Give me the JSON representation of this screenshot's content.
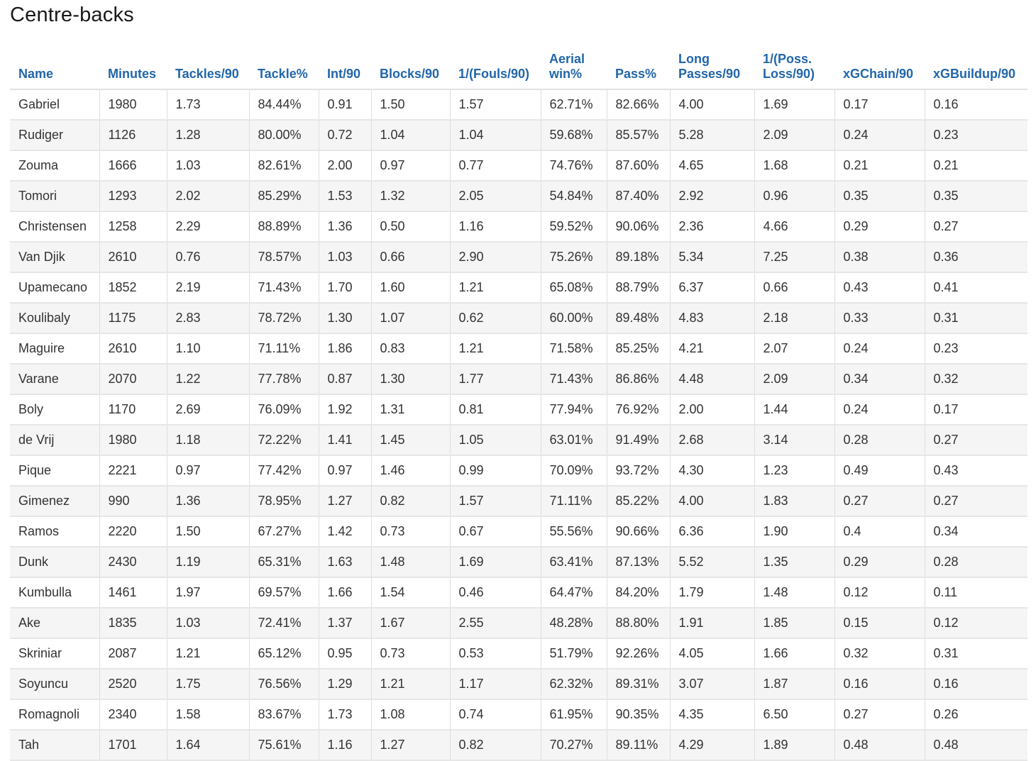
{
  "title": "Centre-backs",
  "columns": [
    {
      "line1": "Name",
      "line2": ""
    },
    {
      "line1": "Minutes",
      "line2": ""
    },
    {
      "line1": "Tackles/90",
      "line2": ""
    },
    {
      "line1": "Tackle%",
      "line2": ""
    },
    {
      "line1": "Int/90",
      "line2": ""
    },
    {
      "line1": "Blocks/90",
      "line2": ""
    },
    {
      "line1": "1/(Fouls/90)",
      "line2": ""
    },
    {
      "line1": "Aerial",
      "line2": "win%"
    },
    {
      "line1": "Pass%",
      "line2": ""
    },
    {
      "line1": "Long",
      "line2": "Passes/90"
    },
    {
      "line1": "1/(Poss.",
      "line2": "Loss/90)"
    },
    {
      "line1": "xGChain/90",
      "line2": ""
    },
    {
      "line1": "xGBuildup/90",
      "line2": ""
    }
  ],
  "rows": [
    [
      "Gabriel",
      "1980",
      "1.73",
      "84.44%",
      "0.91",
      "1.50",
      "1.57",
      "62.71%",
      "82.66%",
      "4.00",
      "1.69",
      "0.17",
      "0.16"
    ],
    [
      "Rudiger",
      "1126",
      "1.28",
      "80.00%",
      "0.72",
      "1.04",
      "1.04",
      "59.68%",
      "85.57%",
      "5.28",
      "2.09",
      "0.24",
      "0.23"
    ],
    [
      "Zouma",
      "1666",
      "1.03",
      "82.61%",
      "2.00",
      "0.97",
      "0.77",
      "74.76%",
      "87.60%",
      "4.65",
      "1.68",
      "0.21",
      "0.21"
    ],
    [
      "Tomori",
      "1293",
      "2.02",
      "85.29%",
      "1.53",
      "1.32",
      "2.05",
      "54.84%",
      "87.40%",
      "2.92",
      "0.96",
      "0.35",
      "0.35"
    ],
    [
      "Christensen",
      "1258",
      "2.29",
      "88.89%",
      "1.36",
      "0.50",
      "1.16",
      "59.52%",
      "90.06%",
      "2.36",
      "4.66",
      "0.29",
      "0.27"
    ],
    [
      "Van Djik",
      "2610",
      "0.76",
      "78.57%",
      "1.03",
      "0.66",
      "2.90",
      "75.26%",
      "89.18%",
      "5.34",
      "7.25",
      "0.38",
      "0.36"
    ],
    [
      "Upamecano",
      "1852",
      "2.19",
      "71.43%",
      "1.70",
      "1.60",
      "1.21",
      "65.08%",
      "88.79%",
      "6.37",
      "0.66",
      "0.43",
      "0.41"
    ],
    [
      "Koulibaly",
      "1175",
      "2.83",
      "78.72%",
      "1.30",
      "1.07",
      "0.62",
      "60.00%",
      "89.48%",
      "4.83",
      "2.18",
      "0.33",
      "0.31"
    ],
    [
      "Maguire",
      "2610",
      "1.10",
      "71.11%",
      "1.86",
      "0.83",
      "1.21",
      "71.58%",
      "85.25%",
      "4.21",
      "2.07",
      "0.24",
      "0.23"
    ],
    [
      "Varane",
      "2070",
      "1.22",
      "77.78%",
      "0.87",
      "1.30",
      "1.77",
      "71.43%",
      "86.86%",
      "4.48",
      "2.09",
      "0.34",
      "0.32"
    ],
    [
      "Boly",
      "1170",
      "2.69",
      "76.09%",
      "1.92",
      "1.31",
      "0.81",
      "77.94%",
      "76.92%",
      "2.00",
      "1.44",
      "0.24",
      "0.17"
    ],
    [
      "de Vrij",
      "1980",
      "1.18",
      "72.22%",
      "1.41",
      "1.45",
      "1.05",
      "63.01%",
      "91.49%",
      "2.68",
      "3.14",
      "0.28",
      "0.27"
    ],
    [
      "Pique",
      "2221",
      "0.97",
      "77.42%",
      "0.97",
      "1.46",
      "0.99",
      "70.09%",
      "93.72%",
      "4.30",
      "1.23",
      "0.49",
      "0.43"
    ],
    [
      "Gimenez",
      "990",
      "1.36",
      "78.95%",
      "1.27",
      "0.82",
      "1.57",
      "71.11%",
      "85.22%",
      "4.00",
      "1.83",
      "0.27",
      "0.27"
    ],
    [
      "Ramos",
      "2220",
      "1.50",
      "67.27%",
      "1.42",
      "0.73",
      "0.67",
      "55.56%",
      "90.66%",
      "6.36",
      "1.90",
      "0.4",
      "0.34"
    ],
    [
      "Dunk",
      "2430",
      "1.19",
      "65.31%",
      "1.63",
      "1.48",
      "1.69",
      "63.41%",
      "87.13%",
      "5.52",
      "1.35",
      "0.29",
      "0.28"
    ],
    [
      "Kumbulla",
      "1461",
      "1.97",
      "69.57%",
      "1.66",
      "1.54",
      "0.46",
      "64.47%",
      "84.20%",
      "1.79",
      "1.48",
      "0.12",
      "0.11"
    ],
    [
      "Ake",
      "1835",
      "1.03",
      "72.41%",
      "1.37",
      "1.67",
      "2.55",
      "48.28%",
      "88.80%",
      "1.91",
      "1.85",
      "0.15",
      "0.12"
    ],
    [
      "Skriniar",
      "2087",
      "1.21",
      "65.12%",
      "0.95",
      "0.73",
      "0.53",
      "51.79%",
      "92.26%",
      "4.05",
      "1.66",
      "0.32",
      "0.31"
    ],
    [
      "Soyuncu",
      "2520",
      "1.75",
      "76.56%",
      "1.29",
      "1.21",
      "1.17",
      "62.32%",
      "89.31%",
      "3.07",
      "1.87",
      "0.16",
      "0.16"
    ],
    [
      "Romagnoli",
      "2340",
      "1.58",
      "83.67%",
      "1.73",
      "1.08",
      "0.74",
      "61.95%",
      "90.35%",
      "4.35",
      "6.50",
      "0.27",
      "0.26"
    ],
    [
      "Tah",
      "1701",
      "1.64",
      "75.61%",
      "1.16",
      "1.27",
      "0.82",
      "70.27%",
      "89.11%",
      "4.29",
      "1.89",
      "0.48",
      "0.48"
    ]
  ]
}
